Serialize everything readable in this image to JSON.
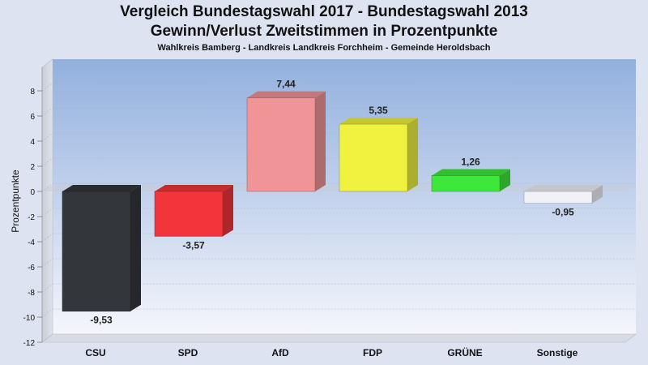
{
  "chart_data": {
    "type": "bar",
    "title": "Vergleich Bundestagswahl 2017 - Bundestagswahl 2013",
    "title2": "Gewinn/Verlust Zweitstimmen in Prozentpunkte",
    "subtitle": "Wahlkreis Bamberg - Landkreis Landkreis Forchheim - Gemeinde Heroldsbach",
    "ylabel": "Prozentpunkte",
    "xlabel": "",
    "ylim": [
      -12,
      8
    ],
    "yticks": [
      8,
      6,
      4,
      2,
      0,
      -2,
      -4,
      -6,
      -8,
      -10,
      -12
    ],
    "grid": true,
    "categories": [
      "CSU",
      "SPD",
      "AfD",
      "FDP",
      "GRÜNE",
      "Sonstige"
    ],
    "values": [
      -9.53,
      -3.57,
      7.44,
      5.35,
      1.26,
      -0.95
    ],
    "value_labels": [
      "-9,53",
      "-3,57",
      "7,44",
      "5,35",
      "1,26",
      "-0,95"
    ],
    "colors": [
      "#33363b",
      "#f2353a",
      "#f09497",
      "#eff23e",
      "#3ee83a",
      "#f0f2f7"
    ]
  }
}
